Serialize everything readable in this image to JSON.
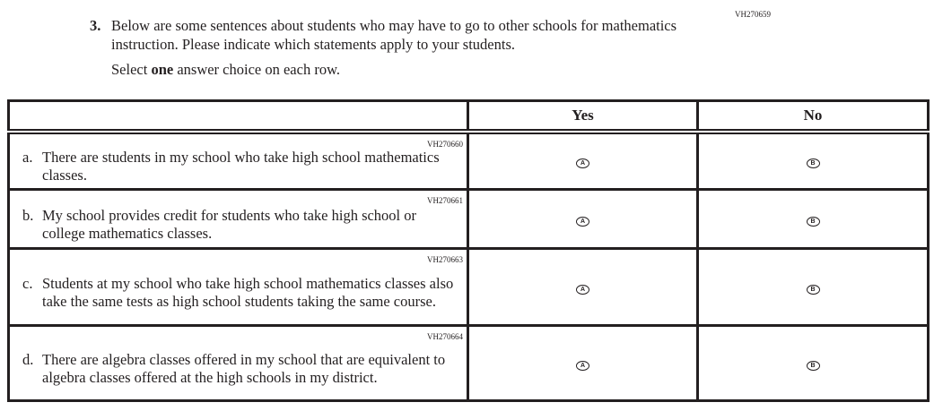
{
  "question": {
    "id": "VH270659",
    "number": "3.",
    "text": "Below are some sentences about students who may have to go to other schools for mathematics instruction. Please indicate which statements apply to your students.",
    "instruction_pre": "Select ",
    "instruction_bold": "one",
    "instruction_post": " answer choice on each row."
  },
  "columns": {
    "yes": "Yes",
    "no": "No"
  },
  "rows": [
    {
      "id": "VH270660",
      "letter": "a.",
      "text": "There are students in my school who take high school mathematics classes.",
      "yes": "A",
      "no": "B"
    },
    {
      "id": "VH270661",
      "letter": "b.",
      "text": "My school provides credit for students who take high school or college mathematics classes.",
      "yes": "A",
      "no": "B"
    },
    {
      "id": "VH270663",
      "letter": "c.",
      "text": "Students at my school who take high school mathematics classes also take the same tests as high school students taking the same course.",
      "yes": "A",
      "no": "B"
    },
    {
      "id": "VH270664",
      "letter": "d.",
      "text": "There are algebra classes offered in my school that are equivalent to algebra classes offered at the high schools in my district.",
      "yes": "A",
      "no": "B"
    }
  ]
}
